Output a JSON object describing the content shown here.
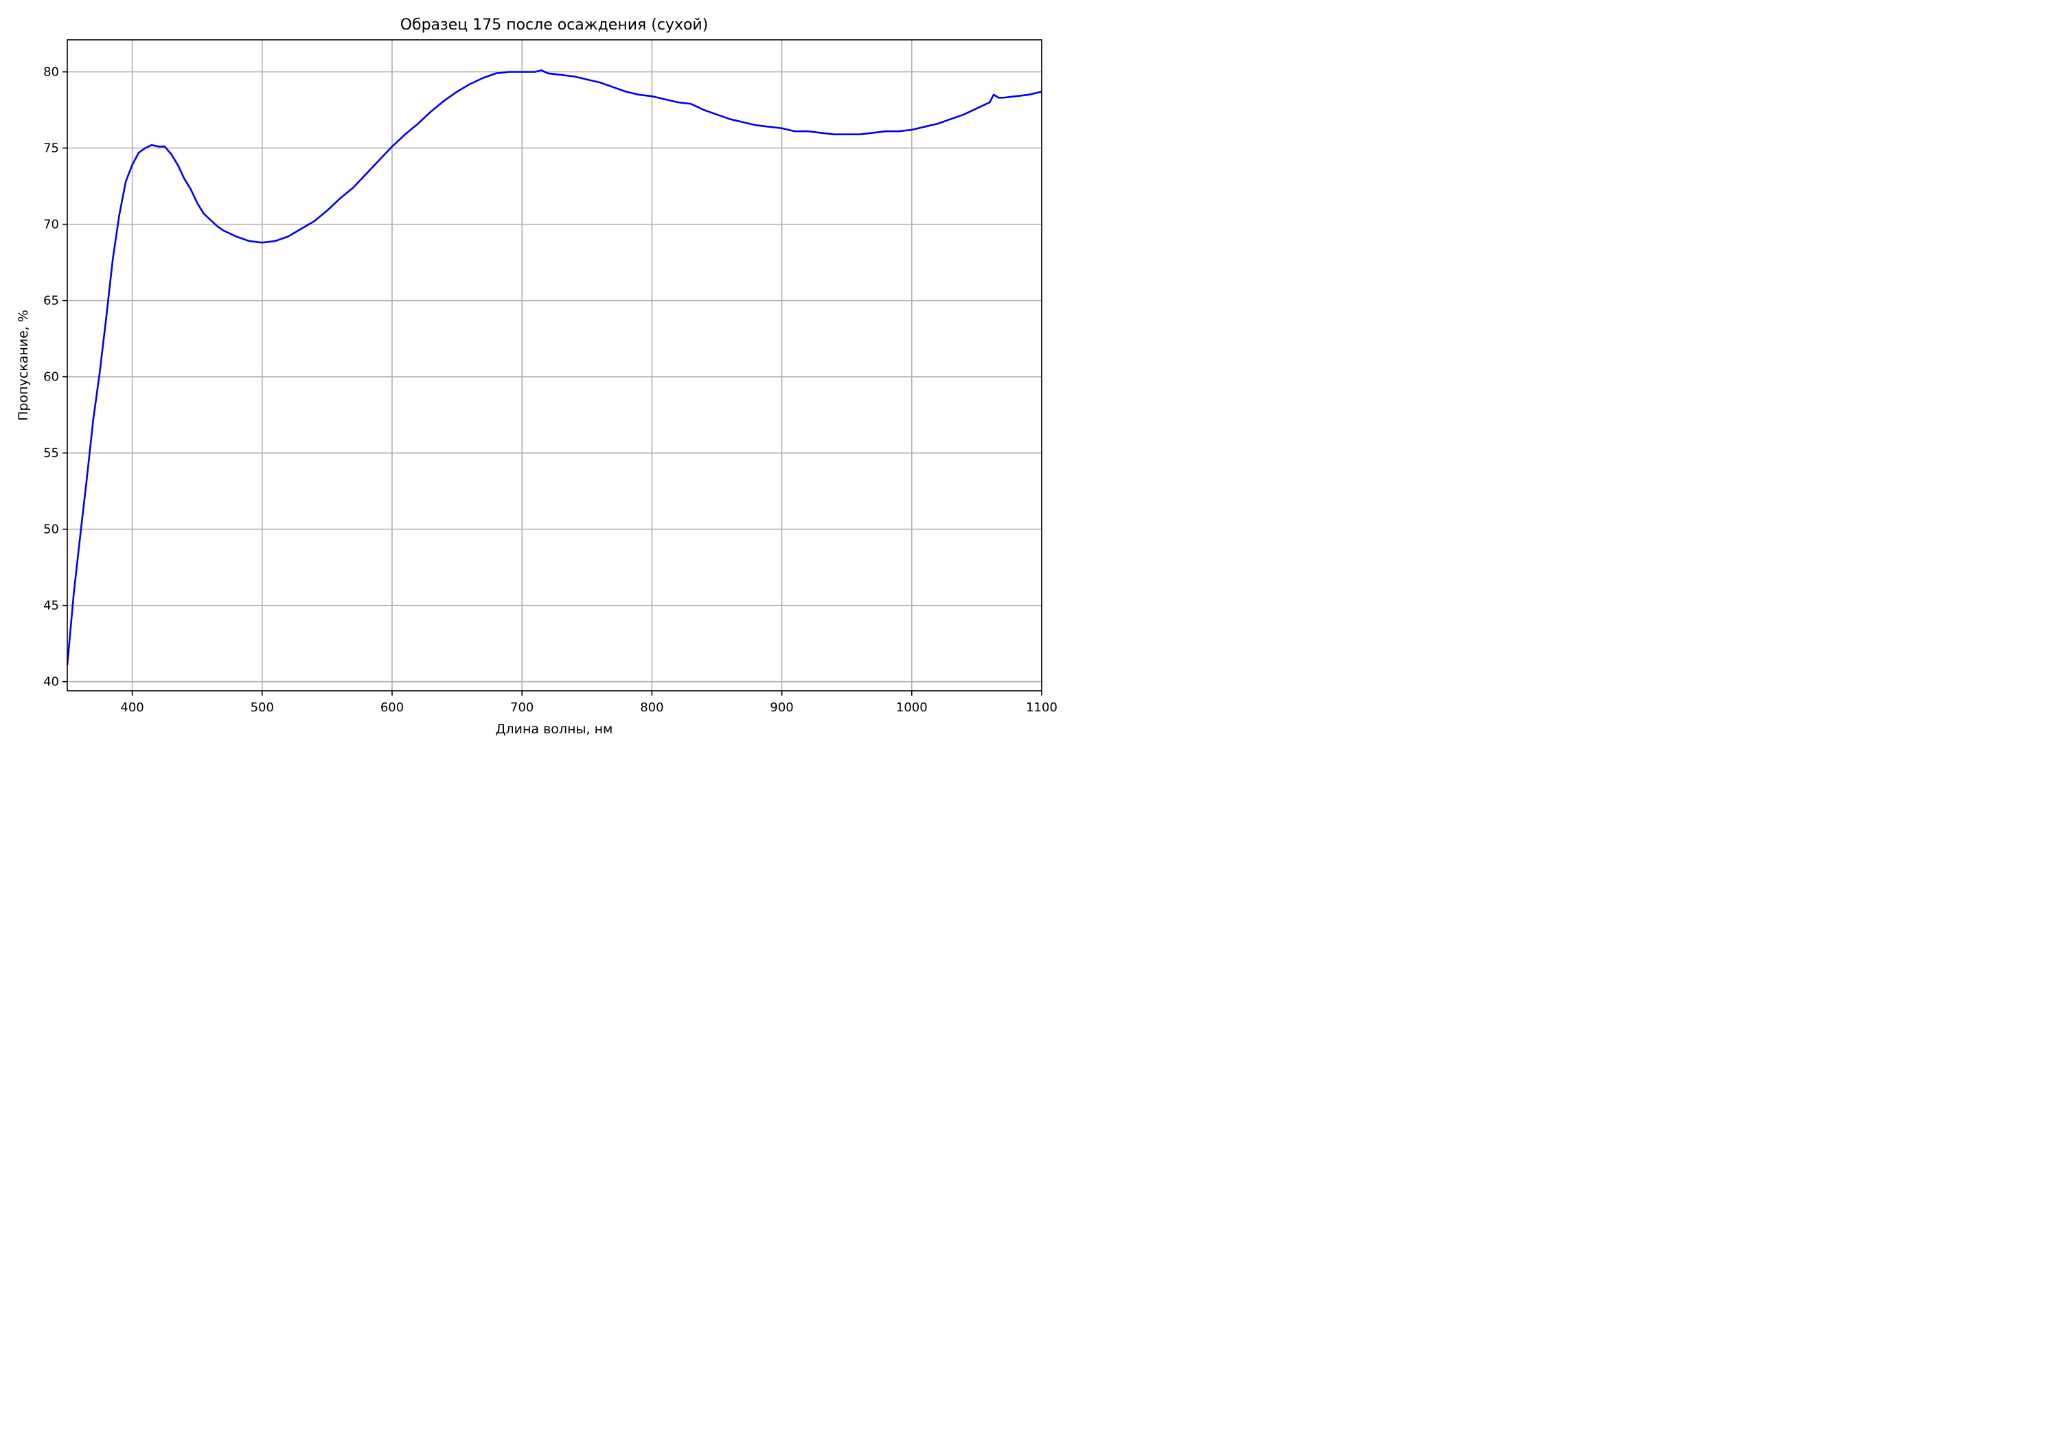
{
  "chart_data": {
    "type": "line",
    "title": "Образец 175 после осаждения (сухой)",
    "xlabel": "Длина волны, нм",
    "ylabel": "Пропускание, %",
    "xlim": [
      350,
      1100
    ],
    "ylim": [
      39.4,
      82.1
    ],
    "xticks": [
      400,
      500,
      600,
      700,
      800,
      900,
      1000,
      1100
    ],
    "yticks": [
      40,
      45,
      50,
      55,
      60,
      65,
      70,
      75,
      80
    ],
    "grid": true,
    "series": [
      {
        "color": "#0000ee",
        "x": [
          350,
          355,
          360,
          365,
          370,
          375,
          380,
          385,
          390,
          395,
          400,
          405,
          410,
          415,
          420,
          425,
          430,
          435,
          440,
          445,
          450,
          455,
          460,
          465,
          470,
          475,
          480,
          490,
          500,
          510,
          520,
          530,
          540,
          550,
          560,
          570,
          580,
          590,
          600,
          610,
          620,
          630,
          640,
          650,
          660,
          670,
          680,
          690,
          700,
          710,
          715,
          720,
          730,
          740,
          750,
          760,
          770,
          780,
          790,
          800,
          810,
          820,
          830,
          840,
          850,
          860,
          870,
          880,
          890,
          900,
          910,
          920,
          930,
          940,
          950,
          960,
          970,
          980,
          990,
          1000,
          1010,
          1020,
          1030,
          1040,
          1050,
          1060,
          1063,
          1067,
          1070,
          1080,
          1090,
          1100
        ],
        "y": [
          41.1,
          45.8,
          49.6,
          53.3,
          57.2,
          60.3,
          63.9,
          67.7,
          70.6,
          72.8,
          73.9,
          74.7,
          75.0,
          75.2,
          75.1,
          75.1,
          74.6,
          73.9,
          73.0,
          72.3,
          71.4,
          70.7,
          70.3,
          69.9,
          69.6,
          69.4,
          69.2,
          68.9,
          68.8,
          68.9,
          69.2,
          69.7,
          70.2,
          70.9,
          71.7,
          72.4,
          73.3,
          74.2,
          75.1,
          75.9,
          76.6,
          77.4,
          78.1,
          78.7,
          79.2,
          79.6,
          79.9,
          80.0,
          80.0,
          80.0,
          80.1,
          79.9,
          79.8,
          79.7,
          79.5,
          79.3,
          79.0,
          78.7,
          78.5,
          78.4,
          78.2,
          78.0,
          77.9,
          77.5,
          77.2,
          76.9,
          76.7,
          76.5,
          76.4,
          76.3,
          76.1,
          76.1,
          76.0,
          75.9,
          75.9,
          75.9,
          76.0,
          76.1,
          76.1,
          76.2,
          76.4,
          76.6,
          76.9,
          77.2,
          77.6,
          78.0,
          78.5,
          78.3,
          78.3,
          78.4,
          78.5,
          78.7
        ]
      }
    ]
  }
}
